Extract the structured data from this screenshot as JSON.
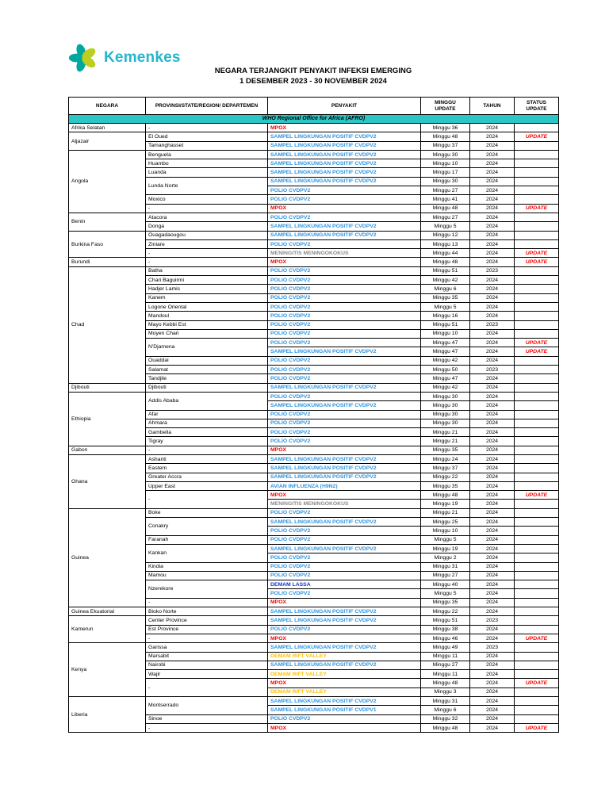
{
  "logo": {
    "brand": "Kemenkes",
    "brand_color": "#24B6CC",
    "petal_teal": "#00A79E",
    "petal_green": "#BCCF20"
  },
  "title": {
    "line1": "NEGARA TERJANGKIT PENYAKIT INFEKSI EMERGING",
    "line2": "1 DESEMBER 2023 - 30 NOVEMBER 2024"
  },
  "table": {
    "headers": [
      "NEGARA",
      "PROVINSI/STATE/REGION/ DEPARTEMEN",
      "PENYAKIT",
      "MINGGU UPDATE",
      "TAHUN",
      "STATUS UPDATE"
    ],
    "section_banner": "WHO Regional Office for Africa (AFRO)",
    "banner_bg": "#2CC6C6",
    "status_color": "#FF0000",
    "disease_colors": {
      "sampel": "#2E94E0",
      "polio": "#2E94E0",
      "avian": "#2E94E0",
      "lassa": "#1233CC",
      "mpox": "#FF0000",
      "rift": "#FFC000",
      "mening": "#8A8A8A"
    },
    "countries": [
      {
        "name": "Afrika Selatan",
        "rows": [
          {
            "province": "-",
            "disease": "MPOX",
            "type": "mpox",
            "week": "Minggu 36",
            "year": "2024",
            "status": ""
          }
        ]
      },
      {
        "name": "Aljazair",
        "rows": [
          {
            "province": "El Oued",
            "disease": "SAMPEL LINGKUNGAN POSITIF CVDPV2",
            "type": "sampel",
            "week": "Minggu 48",
            "year": "2024",
            "status": "UPDATE"
          },
          {
            "province": "Tamanghasset",
            "disease": "SAMPEL LINGKUNGAN POSITIF CVDPV2",
            "type": "sampel",
            "week": "Minggu 37",
            "year": "2024",
            "status": ""
          }
        ]
      },
      {
        "name": "Angola",
        "rows": [
          {
            "province": "Benguela",
            "disease": "SAMPEL LINGKUNGAN POSITIF CVDPV2",
            "type": "sampel",
            "week": "Minggu 30",
            "year": "2024",
            "status": ""
          },
          {
            "province": "Huambo",
            "disease": "SAMPEL LINGKUNGAN POSITIF CVDPV2",
            "type": "sampel",
            "week": "Minggu 10",
            "year": "2024",
            "status": ""
          },
          {
            "province": "Luanda",
            "disease": "SAMPEL LINGKUNGAN POSITIF CVDPV2",
            "type": "sampel",
            "week": "Minggu 17",
            "year": "2024",
            "status": ""
          },
          {
            "province": "Lunda Norte",
            "disease": "SAMPEL LINGKUNGAN POSITIF CVDPV2",
            "type": "sampel",
            "week": "Minggu 30",
            "year": "2024",
            "status": ""
          },
          {
            "province": null,
            "disease": "POLIO CVDPV2",
            "type": "polio",
            "week": "Minggu 27",
            "year": "2024",
            "status": ""
          },
          {
            "province": "Moxico",
            "disease": "POLIO CVDPV2",
            "type": "polio",
            "week": "Minggu 41",
            "year": "2024",
            "status": ""
          },
          {
            "province": "-",
            "disease": "MPOX",
            "type": "mpox",
            "week": "Minggu 48",
            "year": "2024",
            "status": "UPDATE"
          }
        ]
      },
      {
        "name": "Benin",
        "rows": [
          {
            "province": "Atacora",
            "disease": "POLIO CVDPV2",
            "type": "polio",
            "week": "Minggu 27",
            "year": "2024",
            "status": ""
          },
          {
            "province": "Donga",
            "disease": "SAMPEL LINGKUNGAN POSITIF CVDPV2",
            "type": "sampel",
            "week": "Minggu 5",
            "year": "2024",
            "status": ""
          }
        ]
      },
      {
        "name": "Burkina Faso",
        "rows": [
          {
            "province": "Ouagadaougou",
            "disease": "SAMPEL LINGKUNGAN POSITIF CVDPV2",
            "type": "sampel",
            "week": "Minggu 12",
            "year": "2024",
            "status": ""
          },
          {
            "province": "Ziniare",
            "disease": "POLIO CVDPV2",
            "type": "polio",
            "week": "Minggu 13",
            "year": "2024",
            "status": ""
          },
          {
            "province": "-",
            "disease": "MENINGITIS MENINGOKOKUS",
            "type": "mening",
            "week": "Minggu 44",
            "year": "2024",
            "status": "UPDATE"
          }
        ]
      },
      {
        "name": "Burundi",
        "rows": [
          {
            "province": "-",
            "disease": "MPOX",
            "type": "mpox",
            "week": "Minggu 48",
            "year": "2024",
            "status": "UPDATE"
          }
        ]
      },
      {
        "name": "Chad",
        "rows": [
          {
            "province": "Batha",
            "disease": "POLIO CVDPV2",
            "type": "polio",
            "week": "Minggu 51",
            "year": "2023",
            "status": ""
          },
          {
            "province": "Chari Baguirmi",
            "disease": "POLIO CVDPV2",
            "type": "polio",
            "week": "Minggu 42",
            "year": "2024",
            "status": ""
          },
          {
            "province": "Hadjer Lamis",
            "disease": "POLIO CVDPV2",
            "type": "polio",
            "week": "Minggu 6",
            "year": "2024",
            "status": ""
          },
          {
            "province": "Kanem",
            "disease": "POLIO CVDPV2",
            "type": "polio",
            "week": "Minggu 35",
            "year": "2024",
            "status": ""
          },
          {
            "province": "Logone Oriental",
            "disease": "POLIO CVDPV2",
            "type": "polio",
            "week": "Minggu 5",
            "year": "2024",
            "status": ""
          },
          {
            "province": "Mandoul",
            "disease": "POLIO CVDPV2",
            "type": "polio",
            "week": "Minggu 16",
            "year": "2024",
            "status": ""
          },
          {
            "province": "Mayo Kebbi Est",
            "disease": "POLIO CVDPV2",
            "type": "polio",
            "week": "Minggu 51",
            "year": "2023",
            "status": ""
          },
          {
            "province": "Moyen Chari",
            "disease": "POLIO CVDPV2",
            "type": "polio",
            "week": "Minggu 10",
            "year": "2024",
            "status": ""
          },
          {
            "province": "N'Djamena",
            "disease": "POLIO CVDPV2",
            "type": "polio",
            "week": "Minggu 47",
            "year": "2024",
            "status": "UPDATE"
          },
          {
            "province": null,
            "disease": "SAMPEL LINGKUNGAN POSITIF CVDPV2",
            "type": "sampel",
            "week": "Minggu 47",
            "year": "2024",
            "status": "UPDATE"
          },
          {
            "province": "Ouaddai",
            "disease": "POLIO CVDPV2",
            "type": "polio",
            "week": "Minggu 42",
            "year": "2024",
            "status": ""
          },
          {
            "province": "Salamat",
            "disease": "POLIO CVDPV2",
            "type": "polio",
            "week": "Minggu 50",
            "year": "2023",
            "status": ""
          },
          {
            "province": "Tandjile",
            "disease": "POLIO CVDPV2",
            "type": "polio",
            "week": "Minggu 47",
            "year": "2024",
            "status": ""
          }
        ]
      },
      {
        "name": "Djibouti",
        "rows": [
          {
            "province": "Djibouti",
            "disease": "SAMPEL LINGKUNGAN POSITIF CVDPV2",
            "type": "sampel",
            "week": "Minggu 42",
            "year": "2024",
            "status": ""
          }
        ]
      },
      {
        "name": "Ethiopia",
        "rows": [
          {
            "province": "Addis Ababa",
            "disease": "POLIO CVDPV2",
            "type": "polio",
            "week": "Minggu 30",
            "year": "2024",
            "status": ""
          },
          {
            "province": null,
            "disease": "SAMPEL LINGKUNGAN POSITIF CVDPV2",
            "type": "sampel",
            "week": "Minggu 30",
            "year": "2024",
            "status": ""
          },
          {
            "province": "Afar",
            "disease": "POLIO CVDPV2",
            "type": "polio",
            "week": "Minggu 30",
            "year": "2024",
            "status": ""
          },
          {
            "province": "Ahmara",
            "disease": "POLIO CVDPV2",
            "type": "polio",
            "week": "Minggu 30",
            "year": "2024",
            "status": ""
          },
          {
            "province": "Gambella",
            "disease": "POLIO CVDPV2",
            "type": "polio",
            "week": "Minggu 21",
            "year": "2024",
            "status": ""
          },
          {
            "province": "Tigray",
            "disease": "POLIO CVDPV2",
            "type": "polio",
            "week": "Minggu 21",
            "year": "2024",
            "status": ""
          }
        ]
      },
      {
        "name": "Gabon",
        "rows": [
          {
            "province": "-",
            "disease": "MPOX",
            "type": "mpox",
            "week": "Minggu 35",
            "year": "2024",
            "status": ""
          }
        ]
      },
      {
        "name": "Ghana",
        "rows": [
          {
            "province": "Ashanti",
            "disease": "SAMPEL LINGKUNGAN POSITIF CVDPV2",
            "type": "sampel",
            "week": "Minggu 24",
            "year": "2024",
            "status": ""
          },
          {
            "province": "Eastern",
            "disease": "SAMPEL LINGKUNGAN POSITIF CVDPV2",
            "type": "sampel",
            "week": "Minggu 37",
            "year": "2024",
            "status": ""
          },
          {
            "province": "Greater Accra",
            "disease": "SAMPEL LINGKUNGAN POSITIF CVDPV2",
            "type": "sampel",
            "week": "Minggu 22",
            "year": "2024",
            "status": ""
          },
          {
            "province": "Upper East",
            "disease": "AVIAN INFLUENZA (H9N2)",
            "type": "avian",
            "week": "Minggu 35",
            "year": "2024",
            "status": ""
          },
          {
            "province": "-",
            "disease": "MPOX",
            "type": "mpox",
            "week": "Minggu 48",
            "year": "2024",
            "status": "UPDATE"
          },
          {
            "province": null,
            "disease": "MENINGITIS MENINGOKOKUS",
            "type": "mening",
            "week": "Minggu 19",
            "year": "2024",
            "status": ""
          }
        ]
      },
      {
        "name": "Guinea",
        "rows": [
          {
            "province": "Boke",
            "disease": "POLIO CVDPV2",
            "type": "polio",
            "week": "Minggu 21",
            "year": "2024",
            "status": ""
          },
          {
            "province": "Conakry",
            "disease": "SAMPEL LINGKUNGAN POSITIF CVDPV2",
            "type": "sampel",
            "week": "Minggu 25",
            "year": "2024",
            "status": ""
          },
          {
            "province": null,
            "disease": "POLIO CVDPV2",
            "type": "polio",
            "week": "Minggu 10",
            "year": "2024",
            "status": ""
          },
          {
            "province": "Faranah",
            "disease": "POLIO CVDPV2",
            "type": "polio",
            "week": "Minggu 5",
            "year": "2024",
            "status": ""
          },
          {
            "province": "Kankan",
            "disease": "SAMPEL LINGKUNGAN POSITIF CVDPV2",
            "type": "sampel",
            "week": "Minggu 19",
            "year": "2024",
            "status": ""
          },
          {
            "province": null,
            "disease": "POLIO CVDPV2",
            "type": "polio",
            "week": "Minggu 2",
            "year": "2024",
            "status": ""
          },
          {
            "province": "Kindia",
            "disease": "POLIO CVDPV2",
            "type": "polio",
            "week": "Minggu 31",
            "year": "2024",
            "status": ""
          },
          {
            "province": "Mamou",
            "disease": "POLIO CVDPV2",
            "type": "polio",
            "week": "Minggu 27",
            "year": "2024",
            "status": ""
          },
          {
            "province": "Nzerekore",
            "disease": "DEMAM LASSA",
            "type": "lassa",
            "week": "Minggu 40",
            "year": "2024",
            "status": ""
          },
          {
            "province": null,
            "disease": "POLIO CVDPV2",
            "type": "polio",
            "week": "Minggu 5",
            "year": "2024",
            "status": ""
          },
          {
            "province": "-",
            "disease": "MPOX",
            "type": "mpox",
            "week": "Minggu 35",
            "year": "2024",
            "status": ""
          }
        ]
      },
      {
        "name": "Guinea Ekuatorial",
        "rows": [
          {
            "province": "Bioko Norte",
            "disease": "SAMPEL LINGKUNGAN POSITIF CVDPV2",
            "type": "sampel",
            "week": "Minggu 22",
            "year": "2024",
            "status": ""
          }
        ]
      },
      {
        "name": "Kamerun",
        "rows": [
          {
            "province": "Center Province",
            "disease": "SAMPEL LINGKUNGAN POSITIF CVDPV2",
            "type": "sampel",
            "week": "Minggu 51",
            "year": "2023",
            "status": ""
          },
          {
            "province": "Est Province",
            "disease": "POLIO CVDPV2",
            "type": "polio",
            "week": "Minggu 38",
            "year": "2024",
            "status": ""
          },
          {
            "province": "-",
            "disease": "MPOX",
            "type": "mpox",
            "week": "Minggu 46",
            "year": "2024",
            "status": "UPDATE"
          }
        ]
      },
      {
        "name": "Kenya",
        "rows": [
          {
            "province": "Garissa",
            "disease": "SAMPEL LINGKUNGAN POSITIF CVDPV2",
            "type": "sampel",
            "week": "Minggu 49",
            "year": "2023",
            "status": ""
          },
          {
            "province": "Marsabit",
            "disease": "DEMAM RIFT VALLEY",
            "type": "rift",
            "week": "Minggu 11",
            "year": "2024",
            "status": ""
          },
          {
            "province": "Nairobi",
            "disease": "SAMPEL LINGKUNGAN POSITIF CVDPV2",
            "type": "sampel",
            "week": "Minggu 27",
            "year": "2024",
            "status": ""
          },
          {
            "province": "Wajir",
            "disease": "DEMAM RIFT VALLEY",
            "type": "rift",
            "week": "Minggu 11",
            "year": "2024",
            "status": ""
          },
          {
            "province": "-",
            "disease": "MPOX",
            "type": "mpox",
            "week": "Minggu 48",
            "year": "2024",
            "status": "UPDATE"
          },
          {
            "province": null,
            "disease": "DEMAM RIFT VALLEY",
            "type": "rift",
            "week": "Minggu 3",
            "year": "2024",
            "status": ""
          }
        ]
      },
      {
        "name": "Liberia",
        "rows": [
          {
            "province": "Montserrado",
            "disease": "SAMPEL LINGKUNGAN POSITIF CVDPV2",
            "type": "sampel",
            "week": "Minggu 31",
            "year": "2024",
            "status": ""
          },
          {
            "province": null,
            "disease": "SAMPEL LINGKUNGAN POSITIF CVDPV1",
            "type": "sampel",
            "week": "Minggu 6",
            "year": "2024",
            "status": ""
          },
          {
            "province": "Sinoe",
            "disease": "POLIO CVDPV2",
            "type": "polio",
            "week": "Minggu 32",
            "year": "2024",
            "status": ""
          },
          {
            "province": "-",
            "disease": "MPOX",
            "type": "mpox",
            "week": "Minggu 48",
            "year": "2024",
            "status": "UPDATE"
          }
        ]
      }
    ]
  }
}
